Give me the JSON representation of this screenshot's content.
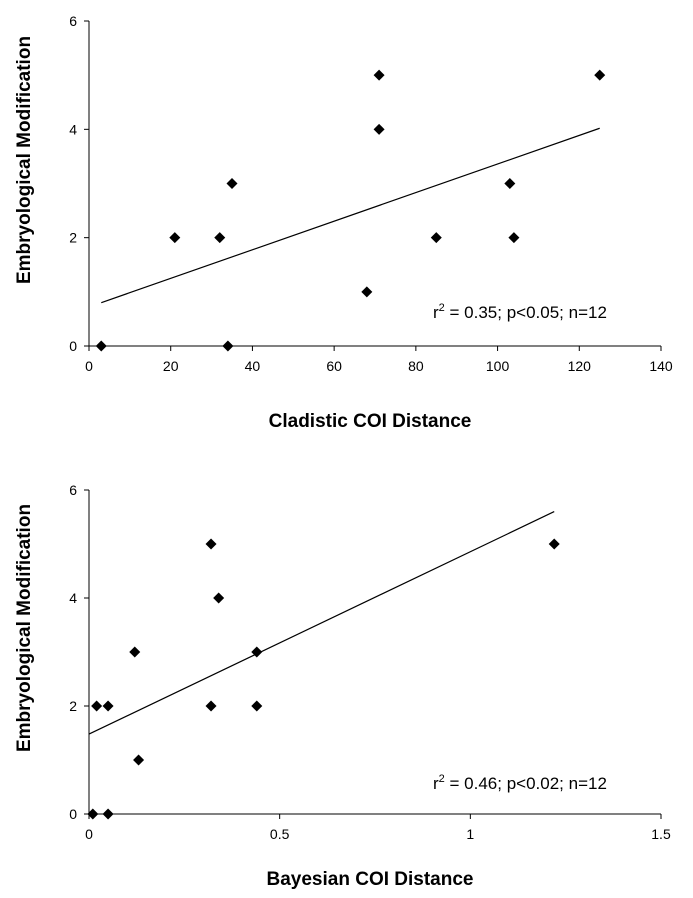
{
  "chart_data": [
    {
      "type": "scatter",
      "xlabel": "Cladistic COI Distance",
      "ylabel": "Embryological Modification",
      "xlim": [
        0,
        140
      ],
      "ylim": [
        0,
        6
      ],
      "xticks": [
        0,
        20,
        40,
        60,
        80,
        100,
        120,
        140
      ],
      "yticks": [
        0,
        2,
        4,
        6
      ],
      "xtick_labels": [
        "0",
        "20",
        "40",
        "60",
        "80",
        "100",
        "120",
        "140"
      ],
      "ytick_labels": [
        "0",
        "2",
        "4",
        "6"
      ],
      "points": [
        {
          "x": 3,
          "y": 0
        },
        {
          "x": 21,
          "y": 2
        },
        {
          "x": 32,
          "y": 2
        },
        {
          "x": 34,
          "y": 0
        },
        {
          "x": 35,
          "y": 3
        },
        {
          "x": 68,
          "y": 1
        },
        {
          "x": 71,
          "y": 5
        },
        {
          "x": 71,
          "y": 4
        },
        {
          "x": 85,
          "y": 2
        },
        {
          "x": 103,
          "y": 3
        },
        {
          "x": 104,
          "y": 2
        },
        {
          "x": 125,
          "y": 5
        }
      ],
      "trendline": {
        "x": [
          3,
          125
        ],
        "y": [
          0.8,
          4.02
        ]
      },
      "annotation": {
        "prefix": "r",
        "sup": "2",
        "suffix": " = 0.35; p<0.05; n=12"
      },
      "grid": false,
      "marker": "diamond",
      "color": "#000000"
    },
    {
      "type": "scatter",
      "xlabel": "Bayesian COI Distance",
      "ylabel": "Embryological Modification",
      "xlim": [
        0,
        1.5
      ],
      "ylim": [
        0,
        6
      ],
      "xticks": [
        0,
        0.5,
        1,
        1.5
      ],
      "yticks": [
        0,
        2,
        4,
        6
      ],
      "xtick_labels": [
        "0",
        "0.5",
        "1",
        "1.5"
      ],
      "ytick_labels": [
        "0",
        "2",
        "4",
        "6"
      ],
      "points": [
        {
          "x": 0.01,
          "y": 0
        },
        {
          "x": 0.05,
          "y": 0
        },
        {
          "x": 0.02,
          "y": 2
        },
        {
          "x": 0.05,
          "y": 2
        },
        {
          "x": 0.12,
          "y": 3
        },
        {
          "x": 0.13,
          "y": 1
        },
        {
          "x": 0.32,
          "y": 5
        },
        {
          "x": 0.34,
          "y": 4
        },
        {
          "x": 0.32,
          "y": 2
        },
        {
          "x": 0.44,
          "y": 3
        },
        {
          "x": 0.44,
          "y": 2
        },
        {
          "x": 1.22,
          "y": 5
        }
      ],
      "trendline": {
        "x": [
          0,
          1.22
        ],
        "y": [
          1.48,
          5.6
        ]
      },
      "annotation": {
        "prefix": "r",
        "sup": "2",
        "suffix": " = 0.46; p<0.02; n=12"
      },
      "grid": false,
      "marker": "diamond",
      "color": "#000000"
    }
  ]
}
